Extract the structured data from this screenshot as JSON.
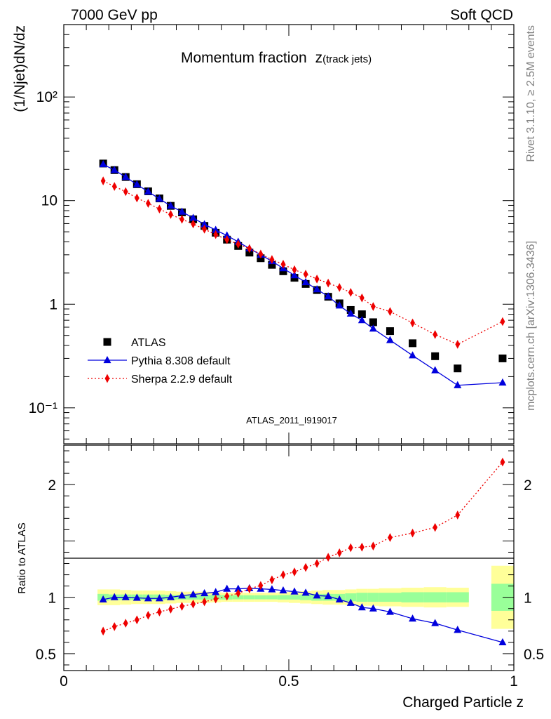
{
  "header": {
    "left": "7000 GeV pp",
    "right": "Soft QCD"
  },
  "side_labels": {
    "rivet": "Rivet 3.1.10, ≥ 2.5M events",
    "mcplots": "mcplots.cern.ch [arXiv:1306.3436]"
  },
  "chart_data": [
    {
      "type": "scatter",
      "panel": "main",
      "title": "Momentum fraction",
      "title_sub": "z(track jets)",
      "ylabel": "(1/Njet)dN/dz",
      "y_scale": "log",
      "ylim": [
        0.045,
        500
      ],
      "xlim": [
        0,
        1
      ],
      "y_ticks": [
        {
          "value": 0.1,
          "label": "10⁻¹"
        },
        {
          "value": 1,
          "label": "1"
        },
        {
          "value": 10,
          "label": "10"
        },
        {
          "value": 100,
          "label": "10²"
        }
      ],
      "watermark": "ATLAS_2011_I919017",
      "legend_position": "bottom-left",
      "x": [
        0.0875,
        0.1125,
        0.1375,
        0.1625,
        0.1875,
        0.2125,
        0.2375,
        0.2625,
        0.2875,
        0.3125,
        0.3375,
        0.3625,
        0.3875,
        0.4125,
        0.4375,
        0.4625,
        0.4875,
        0.5125,
        0.5375,
        0.5625,
        0.5875,
        0.6125,
        0.6375,
        0.6625,
        0.6875,
        0.725,
        0.775,
        0.825,
        0.875,
        0.975
      ],
      "series": [
        {
          "name": "ATLAS",
          "marker": "square",
          "color": "#000000",
          "line": "none",
          "values": [
            22.8,
            19.7,
            16.9,
            14.4,
            12.3,
            10.5,
            8.9,
            7.7,
            6.6,
            5.7,
            4.9,
            4.2,
            3.65,
            3.15,
            2.78,
            2.4,
            2.08,
            1.8,
            1.57,
            1.37,
            1.18,
            1.02,
            0.88,
            0.8,
            0.67,
            0.55,
            0.42,
            0.315,
            0.24,
            0.3
          ]
        },
        {
          "name": "Pythia 8.308 default",
          "marker": "triangle",
          "color": "#0000dd",
          "line": "solid",
          "values": [
            22.4,
            19.7,
            16.9,
            14.3,
            12.2,
            10.4,
            8.9,
            7.8,
            6.8,
            5.9,
            5.2,
            4.6,
            4.0,
            3.45,
            3.0,
            2.6,
            2.22,
            1.9,
            1.63,
            1.39,
            1.19,
            0.97,
            0.81,
            0.7,
            0.58,
            0.45,
            0.32,
            0.23,
            0.165,
            0.175
          ]
        },
        {
          "name": "Sherpa 2.2.9 default",
          "marker": "diamond",
          "color": "#ee0000",
          "line": "dotted",
          "values": [
            15.5,
            13.7,
            12.2,
            10.6,
            9.4,
            8.3,
            7.35,
            6.6,
            5.95,
            5.3,
            4.7,
            4.2,
            3.8,
            3.44,
            3.05,
            2.7,
            2.43,
            2.15,
            1.95,
            1.75,
            1.6,
            1.45,
            1.3,
            1.15,
            0.95,
            0.85,
            0.66,
            0.51,
            0.41,
            0.68
          ]
        }
      ]
    },
    {
      "type": "line",
      "panel": "ratio",
      "ylabel": "Ratio to ATLAS",
      "xlabel": "Charged Particle z",
      "ylim": [
        0.35,
        2.35
      ],
      "xlim": [
        0,
        1
      ],
      "y_ticks": [
        {
          "value": 0.5,
          "label": "0.5"
        },
        {
          "value": 1,
          "label": "1"
        },
        {
          "value": 2,
          "label": "2"
        }
      ],
      "x_ticks": [
        {
          "value": 0,
          "label": "0"
        },
        {
          "value": 0.5,
          "label": "0.5"
        },
        {
          "value": 1,
          "label": "1"
        }
      ],
      "x": [
        0.0875,
        0.1125,
        0.1375,
        0.1625,
        0.1875,
        0.2125,
        0.2375,
        0.2625,
        0.2875,
        0.3125,
        0.3375,
        0.3625,
        0.3875,
        0.4125,
        0.4375,
        0.4625,
        0.4875,
        0.5125,
        0.5375,
        0.5625,
        0.5875,
        0.6125,
        0.6375,
        0.6625,
        0.6875,
        0.725,
        0.775,
        0.825,
        0.875,
        0.975
      ],
      "bins": [
        [
          0.075,
          0.1
        ],
        [
          0.1,
          0.125
        ],
        [
          0.125,
          0.15
        ],
        [
          0.15,
          0.175
        ],
        [
          0.175,
          0.2
        ],
        [
          0.2,
          0.225
        ],
        [
          0.225,
          0.25
        ],
        [
          0.25,
          0.275
        ],
        [
          0.275,
          0.3
        ],
        [
          0.3,
          0.325
        ],
        [
          0.325,
          0.35
        ],
        [
          0.35,
          0.375
        ],
        [
          0.375,
          0.4
        ],
        [
          0.4,
          0.425
        ],
        [
          0.425,
          0.45
        ],
        [
          0.45,
          0.475
        ],
        [
          0.475,
          0.5
        ],
        [
          0.5,
          0.525
        ],
        [
          0.525,
          0.55
        ],
        [
          0.55,
          0.575
        ],
        [
          0.575,
          0.6
        ],
        [
          0.6,
          0.625
        ],
        [
          0.625,
          0.65
        ],
        [
          0.65,
          0.675
        ],
        [
          0.675,
          0.7
        ],
        [
          0.7,
          0.75
        ],
        [
          0.75,
          0.8
        ],
        [
          0.8,
          0.85
        ],
        [
          0.85,
          0.9
        ],
        [
          0.95,
          1.0
        ]
      ],
      "band_stat": [
        0.03,
        0.025,
        0.025,
        0.025,
        0.025,
        0.025,
        0.022,
        0.02,
        0.02,
        0.02,
        0.02,
        0.02,
        0.018,
        0.018,
        0.018,
        0.018,
        0.02,
        0.02,
        0.025,
        0.03,
        0.03,
        0.03,
        0.035,
        0.04,
        0.04,
        0.04,
        0.045,
        0.045,
        0.045,
        0.12
      ],
      "band_total": [
        0.07,
        0.07,
        0.065,
        0.06,
        0.06,
        0.06,
        0.055,
        0.05,
        0.05,
        0.05,
        0.045,
        0.04,
        0.04,
        0.04,
        0.04,
        0.04,
        0.045,
        0.05,
        0.055,
        0.06,
        0.065,
        0.065,
        0.07,
        0.075,
        0.075,
        0.08,
        0.085,
        0.09,
        0.085,
        0.28
      ],
      "band_colors": {
        "total": "#ffff99",
        "stat": "#99ff99"
      },
      "series": [
        {
          "name": "Pythia 8.308 default",
          "marker": "triangle",
          "color": "#0000dd",
          "line": "solid",
          "values": [
            0.98,
            1.0,
            1.0,
            0.995,
            0.99,
            0.99,
            1.0,
            1.015,
            1.025,
            1.035,
            1.045,
            1.075,
            1.075,
            1.08,
            1.075,
            1.07,
            1.06,
            1.05,
            1.04,
            1.015,
            1.01,
            0.98,
            0.95,
            0.91,
            0.9,
            0.87,
            0.81,
            0.77,
            0.71,
            0.6
          ]
        },
        {
          "name": "Sherpa 2.2.9 default",
          "marker": "diamond",
          "color": "#ee0000",
          "line": "dotted",
          "values": [
            0.7,
            0.74,
            0.77,
            0.8,
            0.84,
            0.87,
            0.895,
            0.92,
            0.94,
            0.96,
            0.985,
            1.01,
            1.035,
            1.075,
            1.105,
            1.155,
            1.2,
            1.225,
            1.265,
            1.3,
            1.355,
            1.395,
            1.44,
            1.445,
            1.455,
            1.53,
            1.57,
            1.62,
            1.73,
            2.2
          ]
        }
      ]
    }
  ]
}
